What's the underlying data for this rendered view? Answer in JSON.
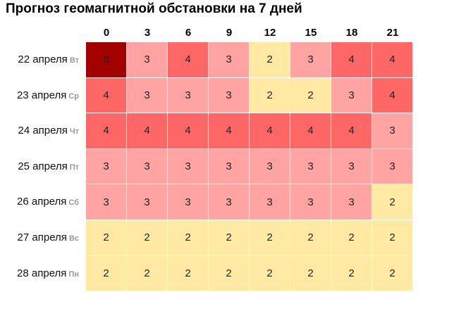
{
  "title": "Прогноз геомагнитной обстановки на 7 дней",
  "hours": [
    0,
    3,
    6,
    9,
    12,
    15,
    18,
    21
  ],
  "rows": [
    {
      "date": "22 апреля",
      "weekday": "Вт",
      "values": [
        6,
        3,
        4,
        3,
        2,
        3,
        4,
        4
      ]
    },
    {
      "date": "23 апреля",
      "weekday": "Ср",
      "values": [
        4,
        3,
        3,
        3,
        2,
        2,
        3,
        4
      ]
    },
    {
      "date": "24 апреля",
      "weekday": "Чт",
      "values": [
        4,
        4,
        4,
        4,
        4,
        4,
        4,
        3
      ]
    },
    {
      "date": "25 апреля",
      "weekday": "Пт",
      "values": [
        3,
        3,
        3,
        3,
        3,
        3,
        3,
        3
      ]
    },
    {
      "date": "26 апреля",
      "weekday": "Сб",
      "values": [
        3,
        3,
        3,
        3,
        3,
        3,
        3,
        2
      ]
    },
    {
      "date": "27 апреля",
      "weekday": "Вс",
      "values": [
        2,
        2,
        2,
        2,
        2,
        2,
        2,
        2
      ]
    },
    {
      "date": "28 апреля",
      "weekday": "Пн",
      "values": [
        2,
        2,
        2,
        2,
        2,
        2,
        2,
        2
      ]
    }
  ],
  "colors": {
    "2": "#ffe9a3",
    "3": "#ffa3a3",
    "4": "#ff6666",
    "6": "#a30000"
  }
}
